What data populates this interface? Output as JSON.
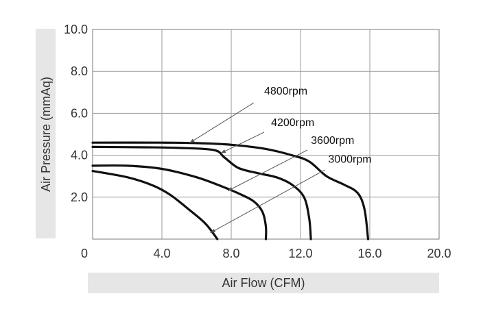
{
  "chart_data": {
    "type": "line",
    "xlabel": "Air Flow (CFM)",
    "ylabel": "Air Pressure (mmAq)",
    "xlim": [
      0,
      20
    ],
    "ylim": [
      0,
      10
    ],
    "x_ticks": [
      "0",
      "4.0",
      "8.0",
      "12.0",
      "16.0",
      "20.0"
    ],
    "y_ticks": [
      "2.0",
      "4.0",
      "6.0",
      "8.0",
      "10.0"
    ],
    "grid": true,
    "colors": {
      "curve": "#111111",
      "grid": "#9a9a9a",
      "frame": "#7a7a7a",
      "label_band": "#e6e6e6",
      "leader": "#555555"
    },
    "series": [
      {
        "name": "4800rpm",
        "points": [
          [
            0,
            4.6
          ],
          [
            4,
            4.6
          ],
          [
            6,
            4.58
          ],
          [
            8,
            4.5
          ],
          [
            10,
            4.3
          ],
          [
            11.5,
            4.0
          ],
          [
            12.5,
            3.7
          ],
          [
            13.5,
            3.0
          ],
          [
            14.5,
            2.6
          ],
          [
            15.3,
            2.2
          ],
          [
            15.7,
            1.4
          ],
          [
            15.9,
            0
          ]
        ]
      },
      {
        "name": "4200rpm",
        "points": [
          [
            0,
            4.4
          ],
          [
            3,
            4.38
          ],
          [
            5,
            4.35
          ],
          [
            7,
            4.25
          ],
          [
            7.6,
            3.9
          ],
          [
            8.4,
            3.4
          ],
          [
            9.5,
            3.15
          ],
          [
            10.6,
            2.95
          ],
          [
            11.5,
            2.6
          ],
          [
            12.2,
            2.0
          ],
          [
            12.5,
            1.0
          ],
          [
            12.6,
            0
          ]
        ]
      },
      {
        "name": "3600rpm",
        "points": [
          [
            0,
            3.5
          ],
          [
            2,
            3.5
          ],
          [
            4,
            3.35
          ],
          [
            6,
            2.95
          ],
          [
            7.5,
            2.5
          ],
          [
            8.5,
            2.15
          ],
          [
            9.3,
            1.8
          ],
          [
            9.8,
            1.3
          ],
          [
            10,
            0.6
          ],
          [
            10,
            0
          ]
        ]
      },
      {
        "name": "3000rpm",
        "points": [
          [
            0,
            3.25
          ],
          [
            2,
            2.95
          ],
          [
            3.5,
            2.55
          ],
          [
            4.5,
            2.1
          ],
          [
            5.5,
            1.45
          ],
          [
            6.5,
            0.75
          ],
          [
            7.2,
            0
          ]
        ]
      }
    ],
    "annotations": [
      {
        "text": "4800rpm",
        "label_at": [
          9.9,
          6.9
        ],
        "arrow_from": [
          9.3,
          6.5
        ],
        "arrow_to": [
          5.6,
          4.59
        ]
      },
      {
        "text": "4200rpm",
        "label_at": [
          10.3,
          5.4
        ],
        "arrow_from": [
          9.9,
          5.1
        ],
        "arrow_to": [
          7.4,
          4.1
        ]
      },
      {
        "text": "3600rpm",
        "label_at": [
          12.6,
          4.55
        ],
        "arrow_from": [
          12.4,
          4.25
        ],
        "arrow_to": [
          7.8,
          2.3
        ]
      },
      {
        "text": "3000rpm",
        "label_at": [
          13.6,
          3.65
        ],
        "arrow_from": [
          13.4,
          3.3
        ],
        "arrow_to": [
          6.8,
          0.3
        ]
      }
    ]
  }
}
